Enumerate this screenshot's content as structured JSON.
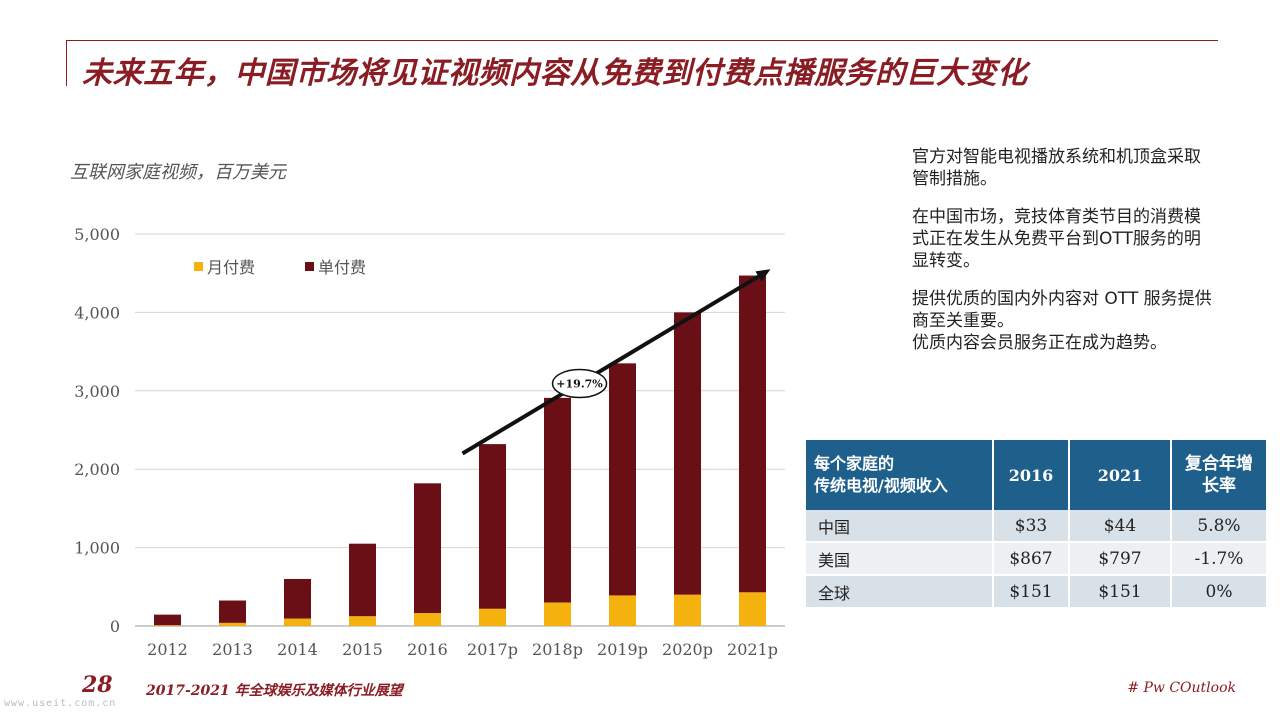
{
  "slide": {
    "title": "未来五年，中国市场将见证视频内容从免费到付费点播服务的巨大变化",
    "page_number": "28",
    "footer_text": "2017-2021 年全球娱乐及媒体行业展望",
    "footer_tag": "# Pw COutlook",
    "watermark": "www.useit.com.cn"
  },
  "chart_data": {
    "type": "bar",
    "stacked": true,
    "title": "互联网家庭视频，百万美元",
    "categories": [
      "2012",
      "2013",
      "2014",
      "2015",
      "2016",
      "2017p",
      "2018p",
      "2019p",
      "2020p",
      "2021p"
    ],
    "series": [
      {
        "name": "月付费",
        "color": "#f5b20f",
        "values": [
          10,
          40,
          95,
          125,
          165,
          220,
          300,
          390,
          400,
          430
        ]
      },
      {
        "name": "单付费",
        "color": "#6b0f17",
        "values": [
          135,
          285,
          505,
          925,
          1655,
          2100,
          2610,
          2960,
          3600,
          4040
        ]
      }
    ],
    "ylim": [
      0,
      5000
    ],
    "yticks": [
      0,
      1000,
      2000,
      3000,
      4000,
      5000
    ],
    "ytick_labels": [
      "0",
      "1,000",
      "2,000",
      "3,000",
      "4,000",
      "5,000"
    ],
    "grid": true,
    "legend": "top-left",
    "annotation": {
      "text": "+19.7%",
      "from_category": "2017p",
      "to_category": "2021p"
    }
  },
  "side_notes": [
    "官方对智能电视播放系统和机顶盒采取管制措施。",
    "在中国市场，竞技体育类节目的消费模式正在发生从免费平台到OTT服务的明显转变。",
    "提供优质的国内外内容对 OTT 服务提供商至关重要。\n优质内容会员服务正在成为趋势。"
  ],
  "table": {
    "headers": [
      "每个家庭的\n传统电视/视频收入",
      "2016",
      "2021",
      "复合年增\n长率"
    ],
    "rows": [
      [
        "中国",
        "$33",
        "$44",
        "5.8%"
      ],
      [
        "美国",
        "$867",
        "$797",
        "-1.7%"
      ],
      [
        "全球",
        "$151",
        "$151",
        "0%"
      ]
    ],
    "header_color": "#1f5f8b"
  }
}
